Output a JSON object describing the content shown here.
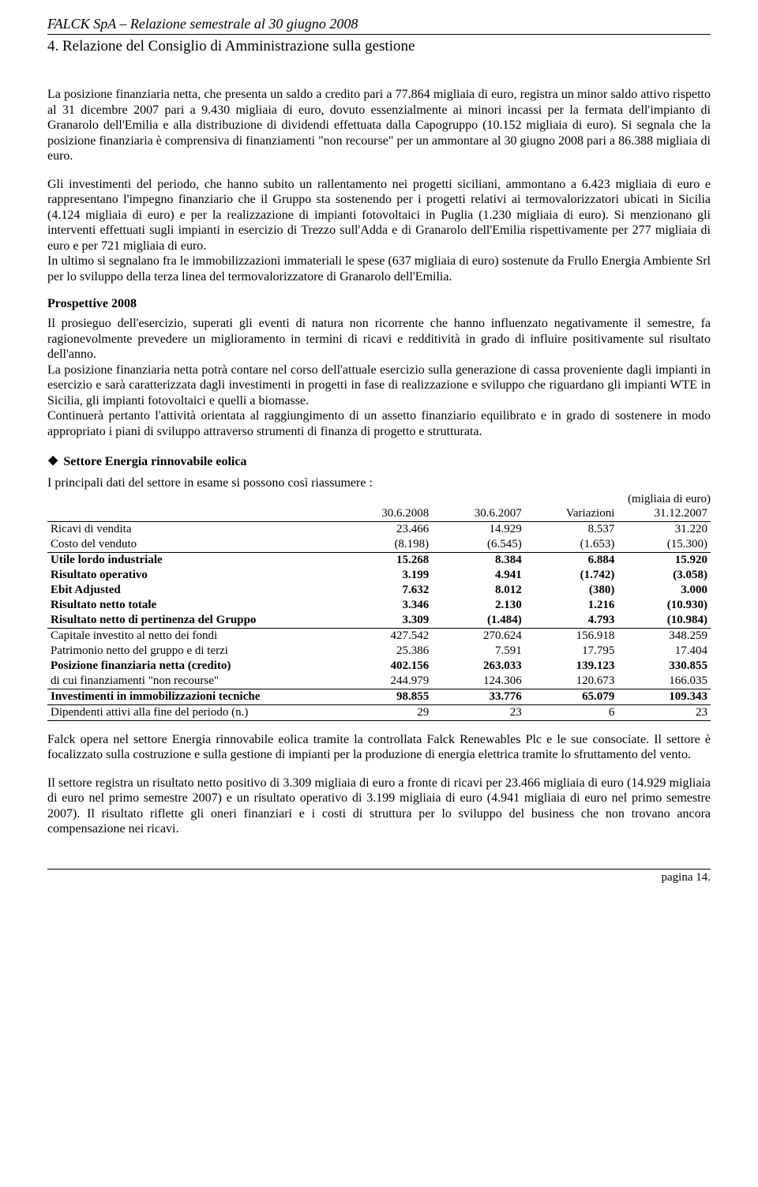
{
  "header": {
    "title": "FALCK SpA – Relazione semestrale al 30 giugno 2008",
    "subtitle": "4. Relazione del Consiglio di Amministrazione sulla gestione"
  },
  "paragraphs": {
    "p1": "La posizione finanziaria netta, che presenta un saldo a credito pari a 77.864 migliaia di euro, registra un minor saldo attivo rispetto al 31 dicembre 2007 pari a 9.430 migliaia di euro, dovuto essenzialmente ai minori incassi per la fermata dell'impianto di Granarolo dell'Emilia e alla distribuzione di dividendi effettuata dalla Capogruppo (10.152 migliaia di euro). Si segnala che la posizione finanziaria è comprensiva di finanziamenti \"non recourse\" per un ammontare al 30 giugno 2008 pari a 86.388 migliaia di euro.",
    "p2": "Gli investimenti del periodo, che hanno subito un rallentamento nei progetti siciliani, ammontano a 6.423 migliaia di euro e rappresentano l'impegno finanziario che il Gruppo sta sostenendo per i progetti relativi ai termovalorizzatori ubicati in Sicilia (4.124 migliaia di euro) e per la realizzazione di impianti fotovoltaici in Puglia (1.230 migliaia di euro). Si menzionano gli interventi effettuati sugli impianti in esercizio di Trezzo sull'Adda e di Granarolo dell'Emilia rispettivamente per 277 migliaia di euro e per 721 migliaia di euro.",
    "p3": "In ultimo si segnalano fra le immobilizzazioni immateriali le spese (637 migliaia di euro) sostenute da Frullo Energia Ambiente Srl per lo sviluppo della terza linea del termovalorizzatore di Granarolo dell'Emilia.",
    "prospect_head": "Prospettive 2008",
    "p4": "Il prosieguo dell'esercizio, superati gli eventi di natura non ricorrente che hanno influenzato negativamente il semestre, fa ragionevolmente prevedere un miglioramento in termini di ricavi e redditività in grado di influire positivamente sul risultato dell'anno.",
    "p5": "La posizione finanziaria netta potrà contare nel corso dell'attuale esercizio sulla generazione di cassa proveniente dagli impianti in esercizio e sarà caratterizzata dagli investimenti in progetti in fase di realizzazione e sviluppo che riguardano gli impianti WTE in Sicilia, gli impianti fotovoltaici e quelli a biomasse.",
    "p6": "Continuerà pertanto l'attività orientata al raggiungimento di un assetto finanziario equilibrato e in grado di sostenere in modo appropriato i piani di sviluppo attraverso strumenti di finanza di progetto e strutturata.",
    "sector_head": "Settore Energia rinnovabile eolica",
    "p7": "I principali dati del settore in esame si possono così riassumere :",
    "p8": "Falck opera nel settore Energia rinnovabile eolica tramite la controllata Falck Renewables Plc e le sue consociate. Il settore è focalizzato sulla costruzione e sulla gestione di impianti per la produzione di energia elettrica tramite lo sfruttamento del vento.",
    "p9": "Il settore registra un risultato netto positivo di 3.309 migliaia di euro a fronte di ricavi per 23.466 migliaia di euro (14.929 migliaia di euro nel primo semestre 2007) e un risultato operativo di 3.199 migliaia di euro (4.941 migliaia di euro nel primo semestre 2007). Il risultato riflette gli oneri finanziari e i costi di struttura per lo sviluppo del business che non trovano ancora compensazione nei ricavi."
  },
  "table": {
    "unit_caption": "(migliaia di euro)",
    "col_widths": [
      "44%",
      "14%",
      "14%",
      "14%",
      "14%"
    ],
    "headers": [
      "",
      "30.6.2008",
      "30.6.2007",
      "Variazioni",
      "31.12.2007"
    ],
    "rows": [
      {
        "label": "Ricavi di vendita",
        "v": [
          "23.466",
          "14.929",
          "8.537",
          "31.220"
        ],
        "bold": false,
        "rule": false
      },
      {
        "label": "Costo del venduto",
        "v": [
          "(8.198)",
          "(6.545)",
          "(1.653)",
          "(15.300)"
        ],
        "bold": false,
        "rule": true
      },
      {
        "label": "Utile lordo industriale",
        "v": [
          "15.268",
          "8.384",
          "6.884",
          "15.920"
        ],
        "bold": true,
        "rule": false
      },
      {
        "label": "Risultato operativo",
        "v": [
          "3.199",
          "4.941",
          "(1.742)",
          "(3.058)"
        ],
        "bold": true,
        "rule": false
      },
      {
        "label": "Ebit Adjusted",
        "v": [
          "7.632",
          "8.012",
          "(380)",
          "3.000"
        ],
        "bold": true,
        "rule": false
      },
      {
        "label": "Risultato netto totale",
        "v": [
          "3.346",
          "2.130",
          "1.216",
          "(10.930)"
        ],
        "bold": true,
        "rule": false
      },
      {
        "label": "Risultato netto di pertinenza del Gruppo",
        "v": [
          "3.309",
          "(1.484)",
          "4.793",
          "(10.984)"
        ],
        "bold": true,
        "rule": true
      },
      {
        "label": "Capitale investito al netto dei fondi",
        "v": [
          "427.542",
          "270.624",
          "156.918",
          "348.259"
        ],
        "bold": false,
        "rule": false
      },
      {
        "label": "Patrimonio netto del gruppo e di terzi",
        "v": [
          "25.386",
          "7.591",
          "17.795",
          "17.404"
        ],
        "bold": false,
        "rule": false
      },
      {
        "label": "Posizione finanziaria netta (credito)",
        "v": [
          "402.156",
          "263.033",
          "139.123",
          "330.855"
        ],
        "bold": true,
        "rule": false
      },
      {
        "label": "di cui finanziamenti \"non recourse\"",
        "v": [
          "244.979",
          "124.306",
          "120.673",
          "166.035"
        ],
        "bold": false,
        "rule": true
      },
      {
        "label": "Investimenti in immobilizzazioni tecniche",
        "v": [
          "98.855",
          "33.776",
          "65.079",
          "109.343"
        ],
        "bold": true,
        "rule": true
      },
      {
        "label": "Dipendenti attivi alla fine del periodo            (n.)",
        "v": [
          "29",
          "23",
          "6",
          "23"
        ],
        "bold": false,
        "rule": true
      }
    ]
  },
  "footer": {
    "page": "pagina 14."
  },
  "bullet_symbol": "❖"
}
